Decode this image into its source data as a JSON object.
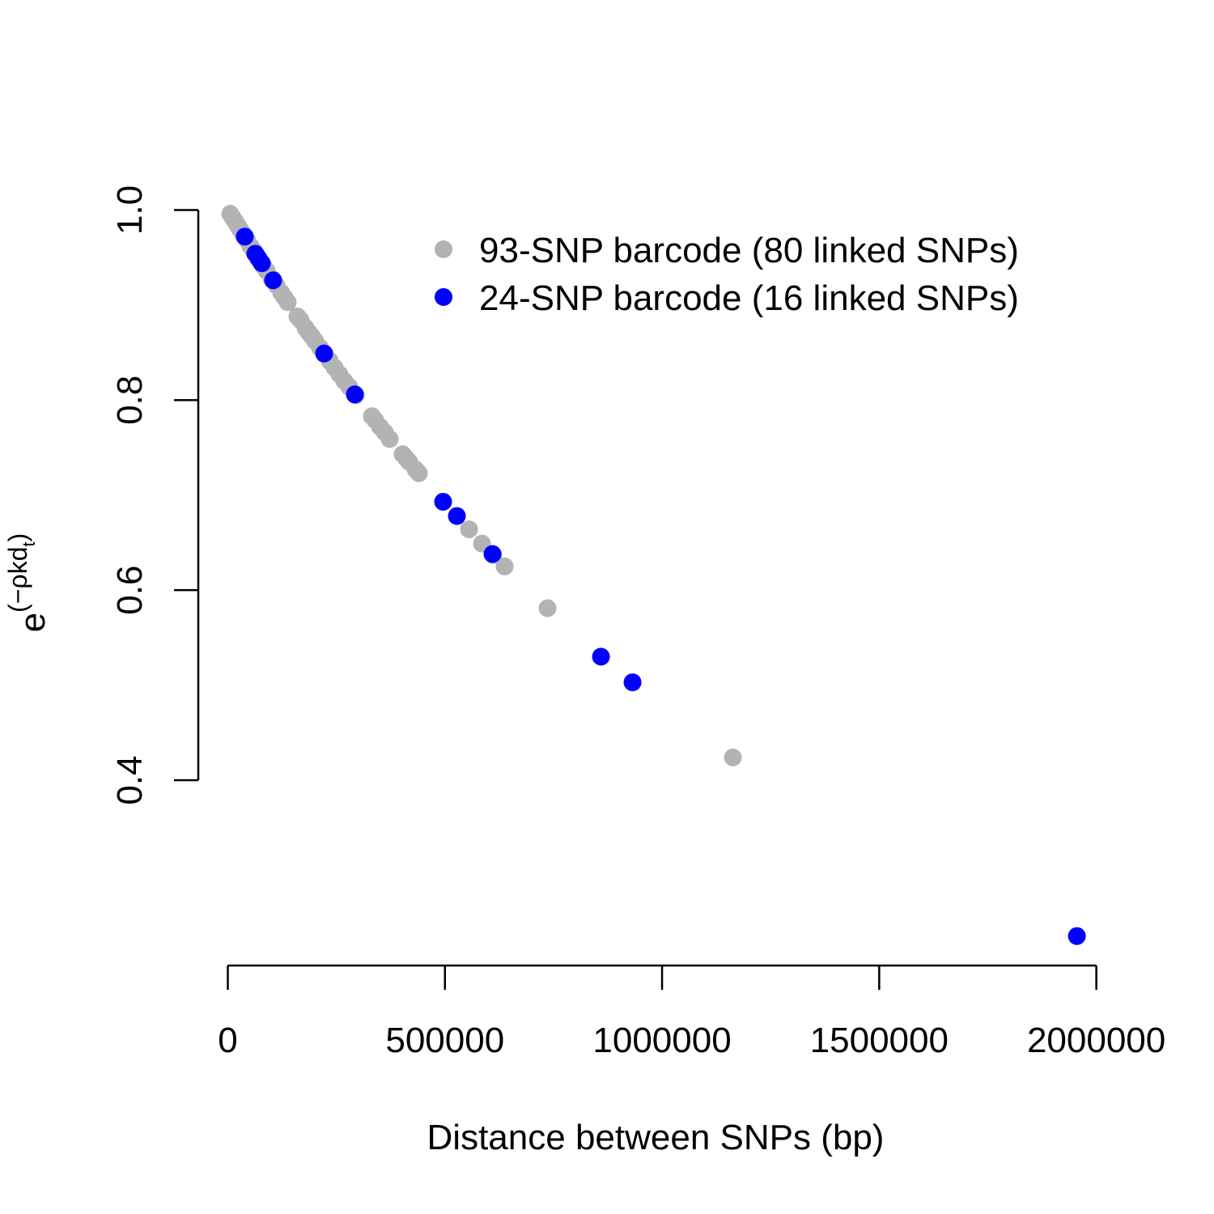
{
  "chart_data": {
    "type": "scatter",
    "x_label": "Distance between SNPs (bp)",
    "y_label": {
      "base": "e",
      "exponent": "(−ρkd",
      "subscript": "t",
      "close": ")"
    },
    "xlim": [
      -68000,
      2038000
    ],
    "ylim": [
      0.205,
      1.02
    ],
    "xticks": [
      0,
      500000,
      1000000,
      1500000,
      2000000
    ],
    "yticks": [
      0.4,
      0.6,
      0.8,
      {
        "value": 1,
        "label": "1.0"
      }
    ],
    "legend": "top-right",
    "series": [
      {
        "name": "93-SNP barcode (80 linked SNPs)",
        "color": "#b3b3b3",
        "x": [
          5600,
          11200,
          16800,
          22400,
          28000,
          33600,
          39100,
          44700,
          52200,
          59600,
          67100,
          74600,
          82000,
          89500,
          100700,
          111800,
          123000,
          130500,
          137900,
          160300,
          167700,
          178900,
          186400,
          193900,
          201300,
          212500,
          223700,
          234900,
          246000,
          257200,
          268400,
          279600,
          294500,
          331800,
          339200,
          350400,
          361600,
          372800,
          402600,
          410100,
          417600,
          432400,
          439900,
          555500,
          585300,
          611400,
          637500,
          736300,
          1163100
        ],
        "values": [
          0.996,
          0.992,
          0.988,
          0.984,
          0.98,
          0.976,
          0.972,
          0.968,
          0.962,
          0.957,
          0.952,
          0.946,
          0.941,
          0.936,
          0.928,
          0.921,
          0.913,
          0.908,
          0.903,
          0.888,
          0.884,
          0.876,
          0.871,
          0.867,
          0.862,
          0.855,
          0.848,
          0.841,
          0.834,
          0.827,
          0.82,
          0.814,
          0.805,
          0.783,
          0.779,
          0.772,
          0.766,
          0.759,
          0.743,
          0.739,
          0.735,
          0.727,
          0.723,
          0.664,
          0.649,
          0.637,
          0.625,
          0.581,
          0.424
        ]
      },
      {
        "name": "24-SNP barcode (16 linked SNPs)",
        "color": "#0000ff",
        "x": [
          39100,
          63400,
          70800,
          78300,
          104400,
          221800,
          292600,
          495800,
          527500,
          609500,
          859300,
          932000,
          1955300
        ],
        "values": [
          0.972,
          0.954,
          0.949,
          0.944,
          0.926,
          0.849,
          0.806,
          0.693,
          0.678,
          0.638,
          0.53,
          0.503,
          0.236
        ]
      }
    ]
  }
}
